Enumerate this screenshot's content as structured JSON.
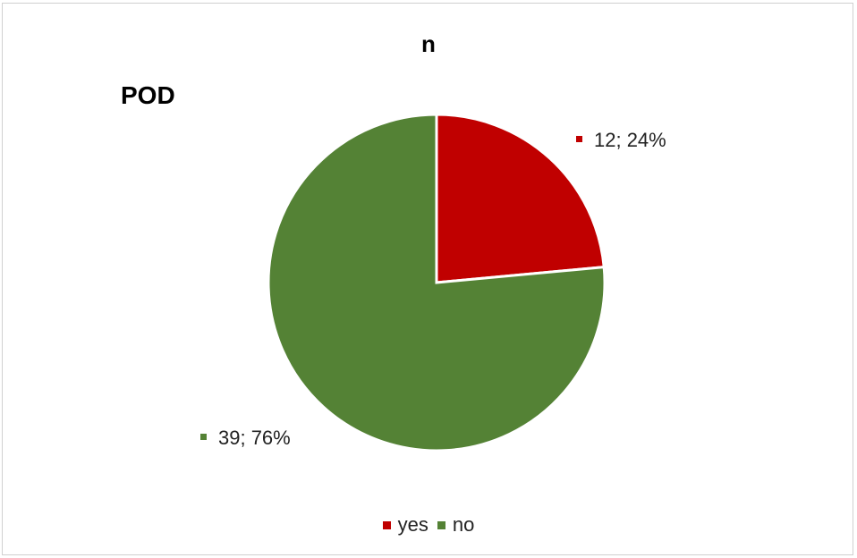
{
  "chart_data": {
    "type": "pie",
    "title": "n",
    "panel_label": "POD",
    "categories": [
      "yes",
      "no"
    ],
    "values": [
      12,
      39
    ],
    "percentages": [
      24,
      76
    ],
    "data_labels": [
      "12; 24%",
      "39; 76%"
    ],
    "colors": [
      "#c00000",
      "#548235"
    ],
    "legend": {
      "placement": "bottom",
      "entries": [
        "yes",
        "no"
      ]
    }
  }
}
